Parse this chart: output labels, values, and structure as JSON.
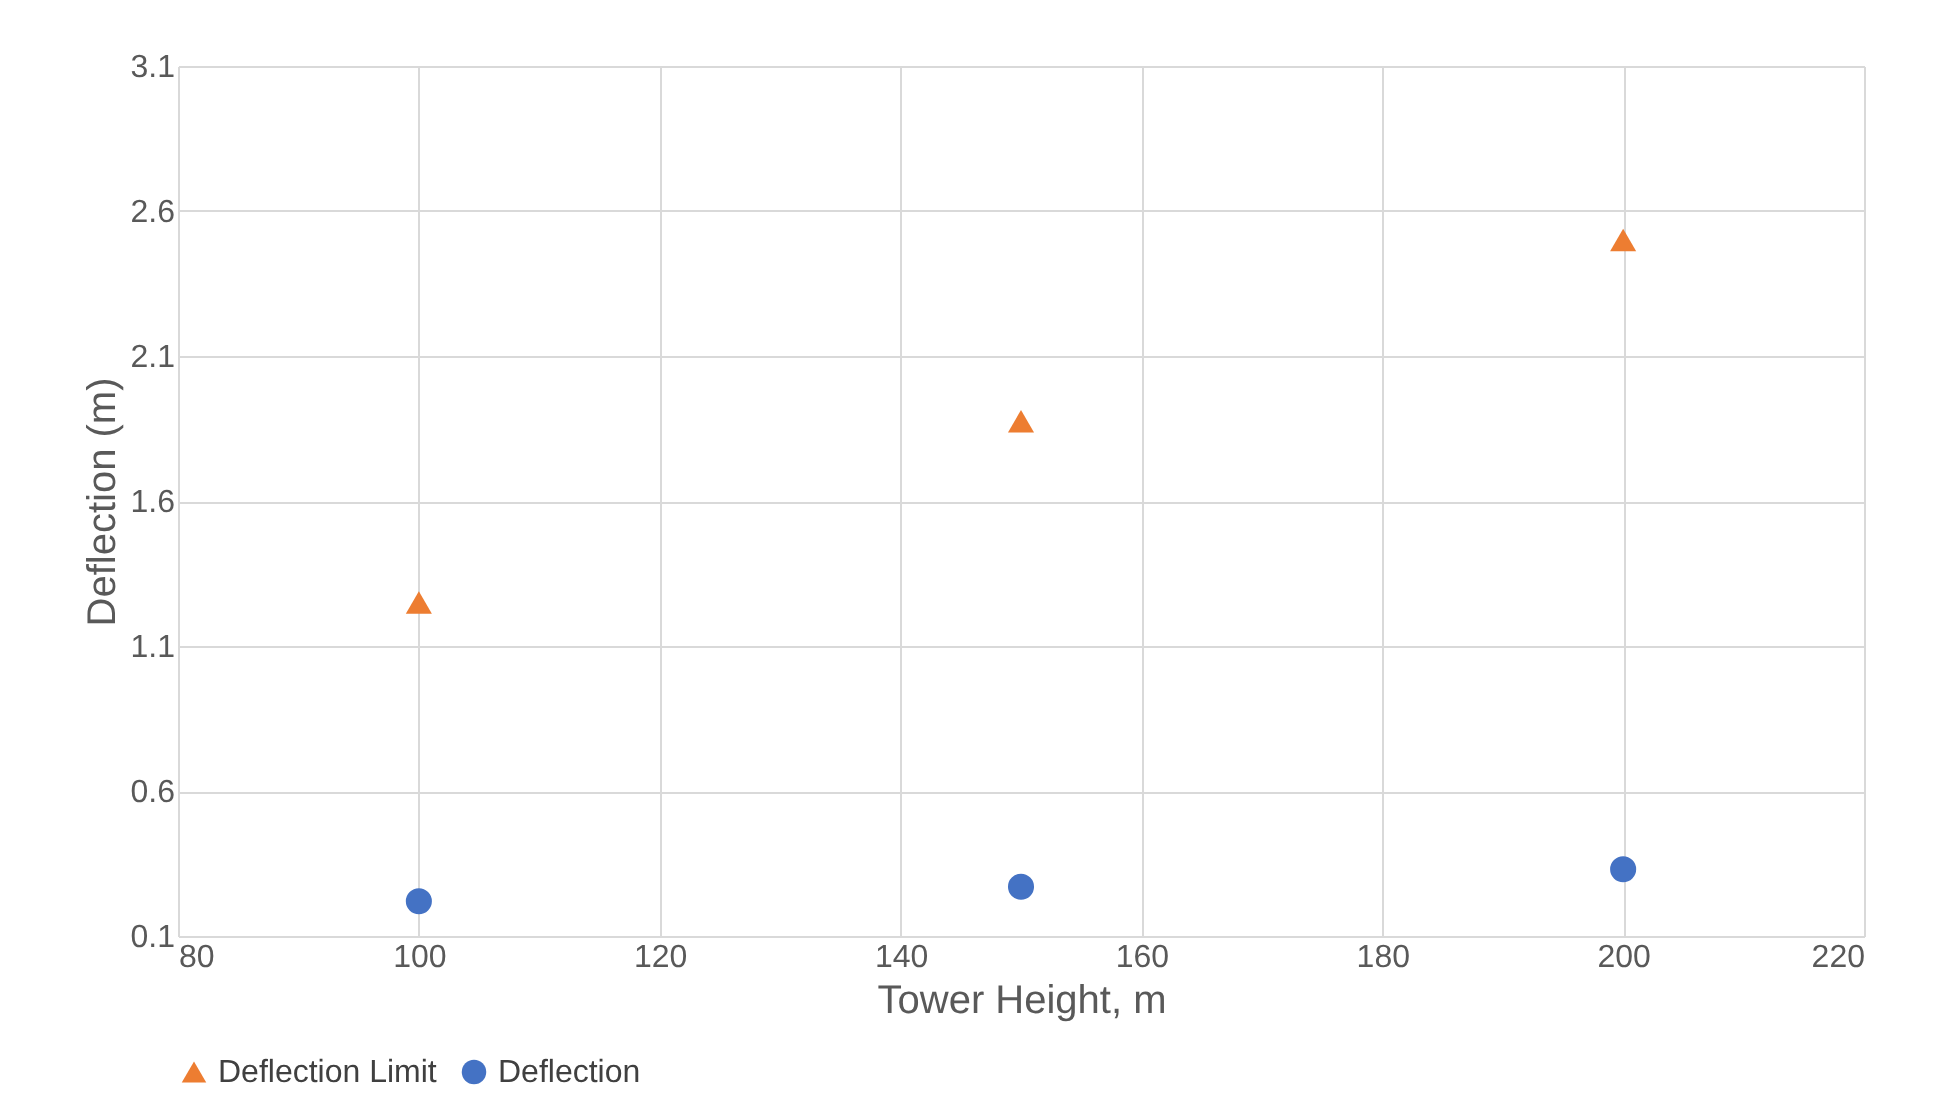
{
  "chart_data": {
    "type": "scatter",
    "xlabel": "Tower Height, m",
    "ylabel": "Deflection (m)",
    "x": [
      100,
      150,
      200
    ],
    "series": [
      {
        "name": "Deflection Limit",
        "color": "#ed7d31",
        "marker": "triangle",
        "values": [
          1.25,
          1.875,
          2.5
        ]
      },
      {
        "name": "Deflection",
        "color": "#4472c4",
        "marker": "circle",
        "values": [
          0.22,
          0.27,
          0.33
        ]
      }
    ],
    "xlim": [
      80,
      220
    ],
    "xticks": [
      80,
      100,
      120,
      140,
      160,
      180,
      200,
      220
    ],
    "ylim": [
      0.1,
      3.1
    ],
    "yticks": [
      0.1,
      0.6,
      1.1,
      1.6,
      2.1,
      2.6,
      3.1
    ],
    "grid": true,
    "legend": "bottom"
  }
}
